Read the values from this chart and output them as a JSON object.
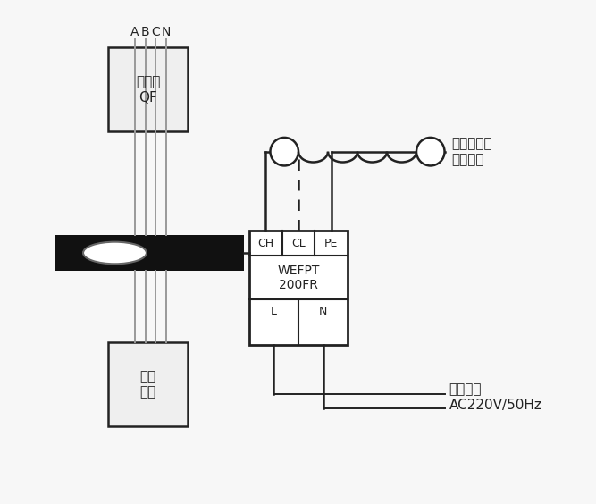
{
  "bg_color": "#f7f7f7",
  "line_color": "#222222",
  "gray_wire": "#999999",
  "black_bar": "#111111",
  "box_fill": "#efefef",
  "white": "#ffffff",
  "labels_top": [
    "A",
    "B",
    "C",
    "N"
  ],
  "breaker_text": [
    "断路器",
    "QF"
  ],
  "device_text": [
    "用电",
    "设备"
  ],
  "wefpt_text": [
    "WEFPT",
    "200FR"
  ],
  "terminal_top": [
    "CH",
    "CL",
    "PE"
  ],
  "terminal_bot": [
    "L",
    "N"
  ],
  "comm_text": [
    "至电气火灾",
    "监控主机"
  ],
  "power_text": [
    "工作电源",
    "AC220V/50Hz"
  ]
}
